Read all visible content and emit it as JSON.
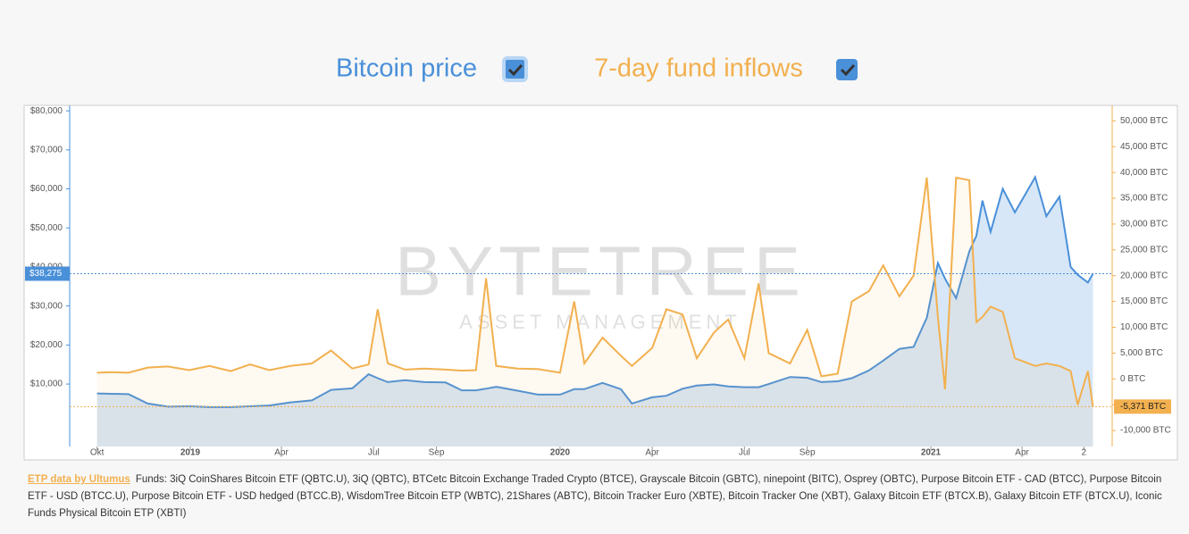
{
  "chart_data": {
    "type": "line",
    "watermark": {
      "title": "BYTETREE",
      "subtitle": "ASSET MANAGEMENT"
    },
    "x": [
      "2018-10-01",
      "2018-10-15",
      "2018-11-01",
      "2018-11-20",
      "2018-12-10",
      "2018-12-31",
      "2019-01-20",
      "2019-02-10",
      "2019-03-01",
      "2019-03-20",
      "2019-04-10",
      "2019-05-01",
      "2019-05-20",
      "2019-06-10",
      "2019-06-26",
      "2019-07-05",
      "2019-07-15",
      "2019-08-01",
      "2019-08-20",
      "2019-09-10",
      "2019-09-26",
      "2019-10-10",
      "2019-10-20",
      "2019-10-30",
      "2019-11-20",
      "2019-12-10",
      "2020-01-01",
      "2020-01-15",
      "2020-01-25",
      "2020-02-12",
      "2020-03-01",
      "2020-03-12",
      "2020-04-01",
      "2020-04-15",
      "2020-05-01",
      "2020-05-15",
      "2020-06-01",
      "2020-06-15",
      "2020-07-01",
      "2020-07-15",
      "2020-07-25",
      "2020-08-15",
      "2020-09-01",
      "2020-09-15",
      "2020-10-01",
      "2020-10-15",
      "2020-11-01",
      "2020-11-15",
      "2020-12-01",
      "2020-12-15",
      "2020-12-28",
      "2021-01-08",
      "2021-01-15",
      "2021-01-26",
      "2021-02-08",
      "2021-02-15",
      "2021-02-21",
      "2021-03-01",
      "2021-03-13",
      "2021-03-25",
      "2021-04-14",
      "2021-04-25",
      "2021-05-08",
      "2021-05-19",
      "2021-05-26",
      "2021-06-05",
      "2021-06-10"
    ],
    "series": [
      {
        "name": "Bitcoin price",
        "color": "#4a90d9",
        "axis": "y",
        "values": [
          7600,
          7500,
          7400,
          5000,
          4200,
          4300,
          4100,
          4100,
          4300,
          4500,
          5300,
          5800,
          8500,
          8900,
          12500,
          11500,
          10500,
          11000,
          10500,
          10400,
          8400,
          8400,
          8800,
          9300,
          8300,
          7300,
          7300,
          8700,
          8700,
          10300,
          8700,
          5000,
          6600,
          7000,
          8800,
          9600,
          9900,
          9400,
          9200,
          9200,
          10000,
          11800,
          11600,
          10500,
          10700,
          11500,
          13500,
          16000,
          19000,
          19500,
          27000,
          41000,
          37000,
          32000,
          44000,
          48000,
          57000,
          49000,
          60000,
          54000,
          63000,
          53000,
          58000,
          40000,
          38000,
          36000,
          38275
        ]
      },
      {
        "name": "7-day fund inflows",
        "color": "#f2b04f",
        "axis": "y2",
        "values": [
          1200,
          1300,
          1200,
          2200,
          2400,
          1700,
          2500,
          1500,
          2800,
          1700,
          2500,
          3000,
          5500,
          2000,
          2800,
          13500,
          3000,
          1800,
          2000,
          1800,
          1600,
          1700,
          19500,
          2500,
          2000,
          1900,
          1200,
          15000,
          3000,
          8000,
          4500,
          2500,
          6000,
          13500,
          12500,
          4000,
          9000,
          11500,
          4000,
          18500,
          5000,
          3000,
          9500,
          500,
          1000,
          15000,
          17000,
          22000,
          16000,
          20000,
          39000,
          12000,
          -2000,
          39000,
          38500,
          11000,
          12000,
          14000,
          13000,
          4000,
          2500,
          3000,
          2500,
          1500,
          -5000,
          1500,
          -5371
        ]
      }
    ],
    "xlim": [
      "2018-09-04",
      "2021-06-29"
    ],
    "xticks": [
      {
        "value": "2018-10-01",
        "label": "Okt"
      },
      {
        "value": "2019-01-01",
        "label": "2019"
      },
      {
        "value": "2019-04-01",
        "label": "Apr"
      },
      {
        "value": "2019-07-01",
        "label": "Jul"
      },
      {
        "value": "2019-09-01",
        "label": "Sep"
      },
      {
        "value": "2020-01-01",
        "label": "2020"
      },
      {
        "value": "2020-04-01",
        "label": "Apr"
      },
      {
        "value": "2020-07-01",
        "label": "Jul"
      },
      {
        "value": "2020-09-01",
        "label": "Sep"
      },
      {
        "value": "2021-01-01",
        "label": "2021"
      },
      {
        "value": "2021-04-01",
        "label": "Apr"
      },
      {
        "value": "2021-06-01",
        "label": "2"
      }
    ],
    "ylim": [
      -6000,
      81400
    ],
    "yticks": [
      {
        "value": 10000,
        "label": "$10,000"
      },
      {
        "value": 20000,
        "label": "$20,000"
      },
      {
        "value": 30000,
        "label": "$30,000"
      },
      {
        "value": 40000,
        "label": "$40,000"
      },
      {
        "value": 50000,
        "label": "$50,000"
      },
      {
        "value": 60000,
        "label": "$60,000"
      },
      {
        "value": 70000,
        "label": "$70,000"
      },
      {
        "value": 80000,
        "label": "$80,000"
      }
    ],
    "y2lim": [
      -13100,
      53000
    ],
    "y2ticks": [
      {
        "value": -10000,
        "label": "-10,000 BTC"
      },
      {
        "value": -5000,
        "label": "-5,000 BTC"
      },
      {
        "value": 0,
        "label": "0 BTC"
      },
      {
        "value": 5000,
        "label": "5,000 BTC"
      },
      {
        "value": 10000,
        "label": "10,000 BTC"
      },
      {
        "value": 15000,
        "label": "15,000 BTC"
      },
      {
        "value": 20000,
        "label": "20,000 BTC"
      },
      {
        "value": 25000,
        "label": "25,000 BTC"
      },
      {
        "value": 30000,
        "label": "30,000 BTC"
      },
      {
        "value": 35000,
        "label": "35,000 BTC"
      },
      {
        "value": 40000,
        "label": "40,000 BTC"
      },
      {
        "value": 45000,
        "label": "45,000 BTC"
      },
      {
        "value": 50000,
        "label": "50,000 BTC"
      }
    ],
    "markers": [
      {
        "value": 38275,
        "label": "$38,275",
        "axis": "y"
      },
      {
        "value": -5371,
        "label": "-5,371 BTC",
        "axis": "y2"
      }
    ]
  },
  "footer": {
    "source": "ETP data by Ultumus",
    "funds": "Funds: 3iQ CoinShares Bitcoin ETF (QBTC.U), 3iQ (QBTC), BTCetc Bitcoin Exchange Traded Crypto (BTCE), Grayscale Bitcoin (GBTC), ninepoint (BITC), Osprey (OBTC), Purpose Bitcoin ETF - CAD (BTCC), Purpose Bitcoin ETF - USD (BTCC.U), Purpose Bitcoin ETF - USD hedged (BTCC.B), WisdomTree Bitcoin ETP (WBTC), 21Shares (ABTC), Bitcoin Tracker Euro (XBTE), Bitcoin Tracker One (XBT), Galaxy Bitcoin ETF (BTCX.B), Galaxy Bitcoin ETF (BTCX.U), Iconic Funds Physical Bitcoin ETP (XBTI)"
  }
}
